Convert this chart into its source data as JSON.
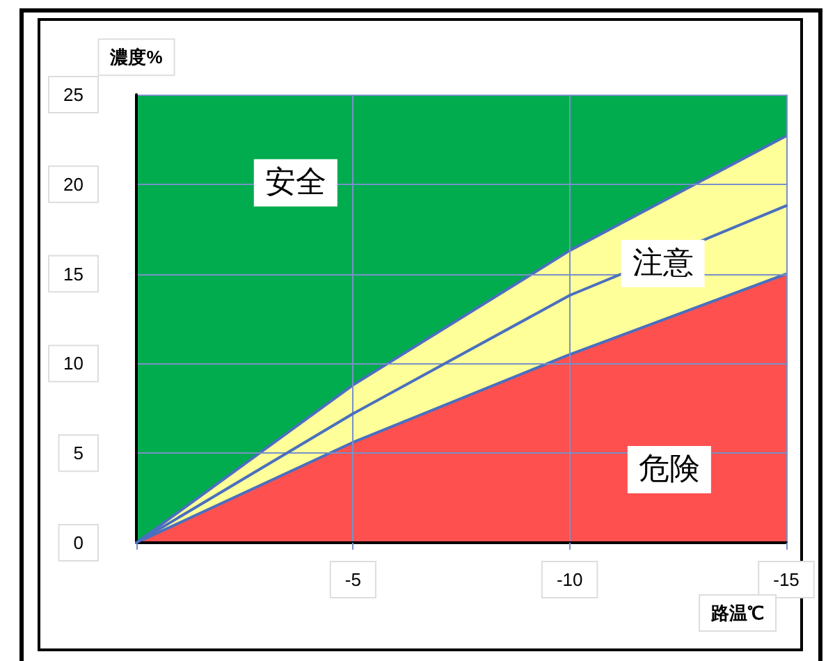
{
  "chart_data": {
    "type": "area",
    "xlabel": "路温℃",
    "ylabel": "濃度%",
    "x": [
      0,
      -5,
      -10,
      -15
    ],
    "stacked": true,
    "series": [
      {
        "color": "#ff5050",
        "values": [
          0,
          5.6,
          10.5,
          15.0
        ]
      },
      {
        "color": "#ffff99",
        "values": [
          0,
          3.2,
          5.8,
          7.7
        ]
      },
      {
        "color": "#00ac4e",
        "values": [
          25,
          16.2,
          8.7,
          2.3
        ]
      },
      {
        "type": "line",
        "color": "#4a6fbf",
        "values": [
          0,
          7.2,
          13.8,
          18.8
        ]
      }
    ],
    "annotations": [
      "安全",
      "注意",
      "危険"
    ],
    "xlim": [
      0,
      -15
    ],
    "xticks": [
      {
        "value": 0,
        "label": null
      },
      -5,
      -10,
      -15
    ],
    "ylim": [
      0,
      25
    ],
    "yticks": [
      0,
      5,
      10,
      15,
      20,
      25
    ],
    "grid": true,
    "marker": "none",
    "line_style": "solid"
  }
}
